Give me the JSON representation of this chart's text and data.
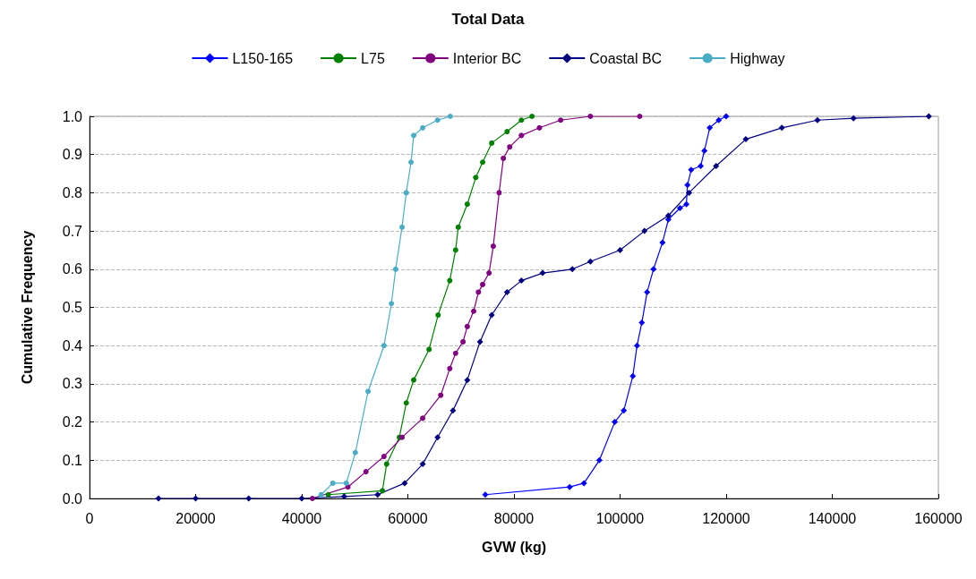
{
  "chart_data": {
    "type": "line",
    "title": "Total Data",
    "xlabel": "GVW (kg)",
    "ylabel": "Cumulative Frequency",
    "xlim": [
      0,
      160000
    ],
    "xticks": [
      0,
      20000,
      40000,
      60000,
      80000,
      100000,
      120000,
      140000,
      160000
    ],
    "ylim": [
      0,
      1
    ],
    "yticks": [
      {
        "value": 0,
        "label": "0.0"
      },
      {
        "value": 0.1,
        "label": "0.1"
      },
      {
        "value": 0.2,
        "label": "0.2"
      },
      {
        "value": 0.3,
        "label": "0.3"
      },
      {
        "value": 0.4,
        "label": "0.4"
      },
      {
        "value": 0.5,
        "label": "0.5"
      },
      {
        "value": 0.6,
        "label": "0.6"
      },
      {
        "value": 0.7,
        "label": "0.7"
      },
      {
        "value": 0.8,
        "label": "0.8"
      },
      {
        "value": 0.9,
        "label": "0.9"
      },
      {
        "value": 1,
        "label": "1.0"
      }
    ],
    "grid": "y",
    "legend": "top",
    "line_style": "solid",
    "series": [
      {
        "name": "L150-165",
        "color": "#0000ff",
        "marker": "diamond",
        "x": [
          74600,
          90500,
          93200,
          96100,
          99000,
          100700,
          102400,
          103200,
          104100,
          105100,
          106300,
          108000,
          109100,
          111300,
          112500,
          112700,
          113400,
          115200,
          115900,
          116900,
          118600,
          120000
        ],
        "values": [
          0.01,
          0.03,
          0.04,
          0.1,
          0.2,
          0.23,
          0.32,
          0.4,
          0.46,
          0.54,
          0.6,
          0.67,
          0.73,
          0.76,
          0.77,
          0.82,
          0.86,
          0.87,
          0.91,
          0.97,
          0.99,
          1
        ]
      },
      {
        "name": "L75",
        "color": "#008000",
        "marker": "circle",
        "x": [
          45000,
          55200,
          56000,
          58400,
          59700,
          61100,
          64000,
          65700,
          67900,
          69000,
          69500,
          71200,
          72800,
          74100,
          75800,
          78700,
          81400,
          83400
        ],
        "values": [
          0.01,
          0.02,
          0.09,
          0.16,
          0.25,
          0.31,
          0.39,
          0.48,
          0.57,
          0.65,
          0.71,
          0.77,
          0.84,
          0.88,
          0.93,
          0.96,
          0.99,
          1
        ]
      },
      {
        "name": "Interior BC",
        "color": "#800080",
        "marker": "circle",
        "x": [
          42000,
          48700,
          52100,
          55500,
          58900,
          62800,
          66200,
          67900,
          69000,
          70400,
          71200,
          72400,
          73300,
          74100,
          75300,
          76100,
          77200,
          78000,
          79200,
          81400,
          84800,
          88800,
          94400,
          103700
        ],
        "values": [
          0,
          0.03,
          0.07,
          0.11,
          0.16,
          0.21,
          0.27,
          0.34,
          0.38,
          0.41,
          0.45,
          0.49,
          0.54,
          0.56,
          0.59,
          0.66,
          0.8,
          0.89,
          0.92,
          0.95,
          0.97,
          0.99,
          1,
          1
        ]
      },
      {
        "name": "Coastal BC",
        "color": "#000080",
        "marker": "diamond",
        "x": [
          13000,
          20000,
          30000,
          40000,
          48000,
          54300,
          59400,
          62800,
          65600,
          68500,
          71200,
          73600,
          75800,
          78700,
          81400,
          85400,
          91000,
          94400,
          100000,
          104600,
          109100,
          113000,
          118100,
          123700,
          130500,
          137200,
          144000,
          158200
        ],
        "values": [
          0,
          0,
          0,
          0,
          0.005,
          0.01,
          0.04,
          0.09,
          0.16,
          0.23,
          0.31,
          0.41,
          0.48,
          0.54,
          0.57,
          0.59,
          0.6,
          0.62,
          0.65,
          0.7,
          0.74,
          0.8,
          0.87,
          0.94,
          0.97,
          0.99,
          0.995,
          1
        ]
      },
      {
        "name": "Highway",
        "color": "#4bacc6",
        "marker": "circle",
        "x": [
          43650,
          45850,
          48400,
          50100,
          52500,
          55500,
          56900,
          57700,
          58900,
          59700,
          60600,
          61100,
          62800,
          65600,
          68000
        ],
        "values": [
          0.01,
          0.04,
          0.04,
          0.12,
          0.28,
          0.4,
          0.51,
          0.6,
          0.71,
          0.8,
          0.88,
          0.95,
          0.97,
          0.99,
          1
        ]
      }
    ]
  }
}
